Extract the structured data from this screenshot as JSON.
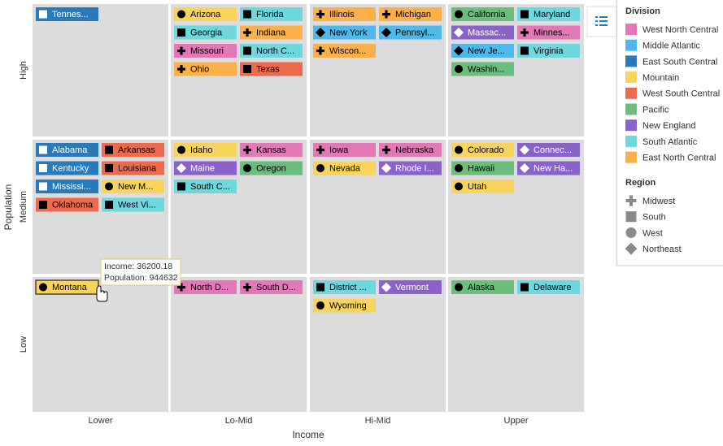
{
  "chart_data": {
    "type": "tile-grid",
    "x_label": "Income",
    "y_label": "Population",
    "x_categories": [
      "Lower",
      "Lo-Mid",
      "Hi-Mid",
      "Upper"
    ],
    "y_categories": [
      "High",
      "Medium",
      "Low"
    ],
    "division_title": "Division",
    "divisions": [
      {
        "name": "West North Central",
        "color": "#e377b7"
      },
      {
        "name": "Middle Atlantic",
        "color": "#4db8ea"
      },
      {
        "name": "East South Central",
        "color": "#2a7ab9"
      },
      {
        "name": "Mountain",
        "color": "#f9d45c"
      },
      {
        "name": "West South Central",
        "color": "#ef6a4c"
      },
      {
        "name": "Pacific",
        "color": "#6bbd7b"
      },
      {
        "name": "New England",
        "color": "#8a63c8"
      },
      {
        "name": "South Atlantic",
        "color": "#6ed8df"
      },
      {
        "name": "East North Central",
        "color": "#fbb04a"
      }
    ],
    "region_title": "Region",
    "regions": [
      {
        "name": "Midwest",
        "shape": "cross"
      },
      {
        "name": "South",
        "shape": "square"
      },
      {
        "name": "West",
        "shape": "circle"
      },
      {
        "name": "Northeast",
        "shape": "diamond"
      }
    ],
    "items": [
      {
        "label": "Tennes...",
        "division": "East South Central",
        "region": "South",
        "income": "Lower",
        "population": "High"
      },
      {
        "label": "Arizona",
        "division": "Mountain",
        "region": "West",
        "income": "Lo-Mid",
        "population": "High"
      },
      {
        "label": "Florida",
        "division": "South Atlantic",
        "region": "South",
        "income": "Lo-Mid",
        "population": "High"
      },
      {
        "label": "Georgia",
        "division": "South Atlantic",
        "region": "South",
        "income": "Lo-Mid",
        "population": "High"
      },
      {
        "label": "Indiana",
        "division": "East North Central",
        "region": "Midwest",
        "income": "Lo-Mid",
        "population": "High"
      },
      {
        "label": "Missouri",
        "division": "West North Central",
        "region": "Midwest",
        "income": "Lo-Mid",
        "population": "High"
      },
      {
        "label": "North C...",
        "division": "South Atlantic",
        "region": "South",
        "income": "Lo-Mid",
        "population": "High"
      },
      {
        "label": "Ohio",
        "division": "East North Central",
        "region": "Midwest",
        "income": "Lo-Mid",
        "population": "High"
      },
      {
        "label": "Texas",
        "division": "West South Central",
        "region": "South",
        "income": "Lo-Mid",
        "population": "High"
      },
      {
        "label": "Illinois",
        "division": "East North Central",
        "region": "Midwest",
        "income": "Hi-Mid",
        "population": "High"
      },
      {
        "label": "Michigan",
        "division": "East North Central",
        "region": "Midwest",
        "income": "Hi-Mid",
        "population": "High"
      },
      {
        "label": "New York",
        "division": "Middle Atlantic",
        "region": "Northeast",
        "income": "Hi-Mid",
        "population": "High"
      },
      {
        "label": "Pennsyl...",
        "division": "Middle Atlantic",
        "region": "Northeast",
        "income": "Hi-Mid",
        "population": "High"
      },
      {
        "label": "Wiscon...",
        "division": "East North Central",
        "region": "Midwest",
        "income": "Hi-Mid",
        "population": "High"
      },
      {
        "label": "California",
        "division": "Pacific",
        "region": "West",
        "income": "Upper",
        "population": "High"
      },
      {
        "label": "Maryland",
        "division": "South Atlantic",
        "region": "South",
        "income": "Upper",
        "population": "High"
      },
      {
        "label": "Massac...",
        "division": "New England",
        "region": "Northeast",
        "income": "Upper",
        "population": "High"
      },
      {
        "label": "Minnes...",
        "division": "West North Central",
        "region": "Midwest",
        "income": "Upper",
        "population": "High"
      },
      {
        "label": "New Je...",
        "division": "Middle Atlantic",
        "region": "Northeast",
        "income": "Upper",
        "population": "High"
      },
      {
        "label": "Virginia",
        "division": "South Atlantic",
        "region": "South",
        "income": "Upper",
        "population": "High"
      },
      {
        "label": "Washin...",
        "division": "Pacific",
        "region": "West",
        "income": "Upper",
        "population": "High"
      },
      {
        "label": "Alabama",
        "division": "East South Central",
        "region": "South",
        "income": "Lower",
        "population": "Medium"
      },
      {
        "label": "Arkansas",
        "division": "West South Central",
        "region": "South",
        "income": "Lower",
        "population": "Medium"
      },
      {
        "label": "Kentucky",
        "division": "East South Central",
        "region": "South",
        "income": "Lower",
        "population": "Medium"
      },
      {
        "label": "Louisiana",
        "division": "West South Central",
        "region": "South",
        "income": "Lower",
        "population": "Medium"
      },
      {
        "label": "Mississi...",
        "division": "East South Central",
        "region": "South",
        "income": "Lower",
        "population": "Medium"
      },
      {
        "label": "New M...",
        "division": "Mountain",
        "region": "West",
        "income": "Lower",
        "population": "Medium"
      },
      {
        "label": "Oklahoma",
        "division": "West South Central",
        "region": "South",
        "income": "Lower",
        "population": "Medium"
      },
      {
        "label": "West Vi...",
        "division": "South Atlantic",
        "region": "South",
        "income": "Lower",
        "population": "Medium"
      },
      {
        "label": "Idaho",
        "division": "Mountain",
        "region": "West",
        "income": "Lo-Mid",
        "population": "Medium"
      },
      {
        "label": "Kansas",
        "division": "West North Central",
        "region": "Midwest",
        "income": "Lo-Mid",
        "population": "Medium"
      },
      {
        "label": "Maine",
        "division": "New England",
        "region": "Northeast",
        "income": "Lo-Mid",
        "population": "Medium"
      },
      {
        "label": "Oregon",
        "division": "Pacific",
        "region": "West",
        "income": "Lo-Mid",
        "population": "Medium"
      },
      {
        "label": "South C...",
        "division": "South Atlantic",
        "region": "South",
        "income": "Lo-Mid",
        "population": "Medium"
      },
      {
        "label": "Iowa",
        "division": "West North Central",
        "region": "Midwest",
        "income": "Hi-Mid",
        "population": "Medium"
      },
      {
        "label": "Nebraska",
        "division": "West North Central",
        "region": "Midwest",
        "income": "Hi-Mid",
        "population": "Medium"
      },
      {
        "label": "Nevada",
        "division": "Mountain",
        "region": "West",
        "income": "Hi-Mid",
        "population": "Medium"
      },
      {
        "label": "Rhode I...",
        "division": "New England",
        "region": "Northeast",
        "income": "Hi-Mid",
        "population": "Medium"
      },
      {
        "label": "Colorado",
        "division": "Mountain",
        "region": "West",
        "income": "Upper",
        "population": "Medium"
      },
      {
        "label": "Connec...",
        "division": "New England",
        "region": "Northeast",
        "income": "Upper",
        "population": "Medium"
      },
      {
        "label": "Hawaii",
        "division": "Pacific",
        "region": "West",
        "income": "Upper",
        "population": "Medium"
      },
      {
        "label": "New Ha...",
        "division": "New England",
        "region": "Northeast",
        "income": "Upper",
        "population": "Medium"
      },
      {
        "label": "Utah",
        "division": "Mountain",
        "region": "West",
        "income": "Upper",
        "population": "Medium"
      },
      {
        "label": "Montana",
        "division": "Mountain",
        "region": "West",
        "income": "Lower",
        "population": "Low",
        "selected": true
      },
      {
        "label": "North D...",
        "division": "West North Central",
        "region": "Midwest",
        "income": "Lo-Mid",
        "population": "Low"
      },
      {
        "label": "South D...",
        "division": "West North Central",
        "region": "Midwest",
        "income": "Lo-Mid",
        "population": "Low"
      },
      {
        "label": "District ...",
        "division": "South Atlantic",
        "region": "South",
        "income": "Hi-Mid",
        "population": "Low"
      },
      {
        "label": "Vermont",
        "division": "New England",
        "region": "Northeast",
        "income": "Hi-Mid",
        "population": "Low"
      },
      {
        "label": "Wyoming",
        "division": "Mountain",
        "region": "West",
        "income": "Hi-Mid",
        "population": "Low"
      },
      {
        "label": "Alaska",
        "division": "Pacific",
        "region": "West",
        "income": "Upper",
        "population": "Low"
      },
      {
        "label": "Delaware",
        "division": "South Atlantic",
        "region": "South",
        "income": "Upper",
        "population": "Low"
      }
    ],
    "tooltip": {
      "lines": [
        "Income: 36200.18",
        "Population: 944632"
      ]
    }
  }
}
